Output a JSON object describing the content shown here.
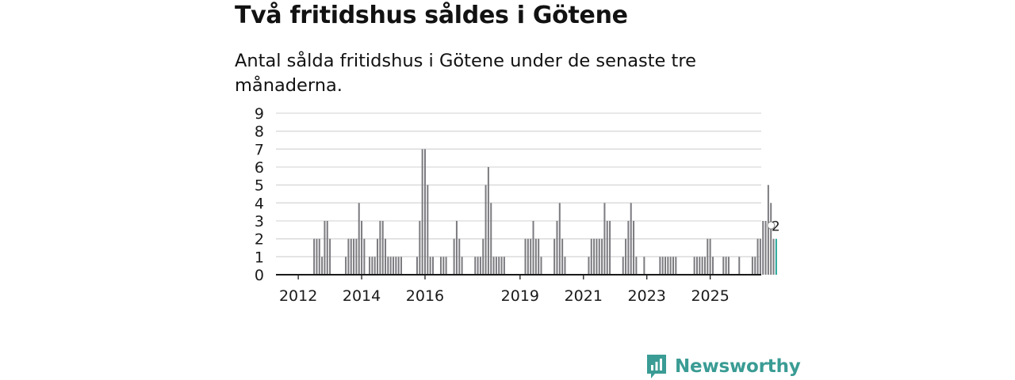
{
  "title": "Två fritidshus såldes i Götene",
  "subtitle": "Antal sålda fritidshus i Götene under de senaste tre månaderna.",
  "logo_text": "Newsworthy",
  "colors": {
    "bar": "#7b7b80",
    "highlight": "#22a598",
    "brand": "#3a9c94"
  },
  "chart_data": {
    "type": "bar",
    "title": "",
    "xlabel": "",
    "ylabel": "",
    "ylim": [
      0,
      9
    ],
    "yticks": [
      0,
      1,
      2,
      3,
      4,
      5,
      6,
      7,
      8,
      9
    ],
    "grid": true,
    "x_ticks": [
      "2012",
      "2014",
      "2016",
      "2019",
      "2021",
      "2023",
      "2025"
    ],
    "highlight_label": "2",
    "x_start": "2011-05",
    "values": [
      0,
      0,
      0,
      0,
      0,
      0,
      0,
      0,
      0,
      0,
      0,
      0,
      0,
      0,
      2,
      2,
      2,
      1,
      3,
      3,
      2,
      0,
      0,
      0,
      0,
      0,
      1,
      2,
      2,
      2,
      2,
      4,
      3,
      2,
      0,
      1,
      1,
      1,
      2,
      3,
      3,
      2,
      1,
      1,
      1,
      1,
      1,
      1,
      0,
      0,
      0,
      0,
      0,
      1,
      3,
      7,
      7,
      5,
      1,
      1,
      0,
      0,
      1,
      1,
      1,
      0,
      0,
      2,
      3,
      2,
      1,
      0,
      0,
      0,
      0,
      1,
      1,
      1,
      2,
      5,
      6,
      4,
      1,
      1,
      1,
      1,
      1,
      0,
      0,
      0,
      0,
      0,
      0,
      0,
      2,
      2,
      2,
      3,
      2,
      2,
      1,
      0,
      0,
      0,
      0,
      2,
      3,
      4,
      2,
      1,
      0,
      0,
      0,
      0,
      0,
      0,
      0,
      0,
      1,
      2,
      2,
      2,
      2,
      2,
      4,
      3,
      3,
      0,
      0,
      0,
      0,
      1,
      2,
      3,
      4,
      3,
      1,
      0,
      0,
      1,
      0,
      0,
      0,
      0,
      0,
      1,
      1,
      1,
      1,
      1,
      1,
      1,
      0,
      0,
      0,
      0,
      0,
      0,
      1,
      1,
      1,
      1,
      1,
      2,
      2,
      1,
      0,
      0,
      0,
      1,
      1,
      1,
      0,
      0,
      0,
      1,
      0,
      0,
      0,
      0,
      1,
      1,
      2,
      2,
      3,
      3,
      5,
      4,
      2,
      2
    ],
    "highlight_last": true
  }
}
